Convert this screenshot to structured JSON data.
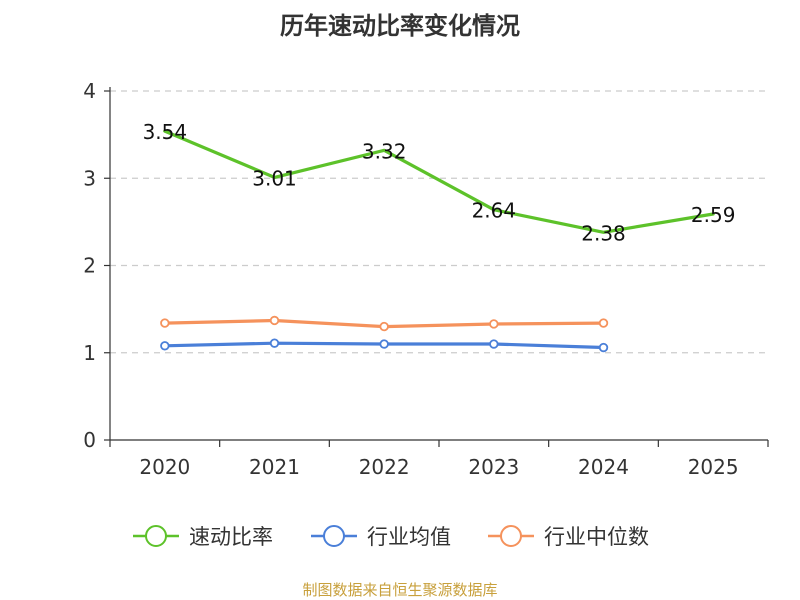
{
  "chart_data": {
    "type": "line",
    "title": "历年速动比率变化情况",
    "categories": [
      "2020",
      "2021",
      "2022",
      "2023",
      "2024",
      "2025"
    ],
    "yticks": [
      "0",
      "1",
      "2",
      "3",
      "4"
    ],
    "ylim": [
      0,
      4
    ],
    "grid": true,
    "legend_position": "bottom",
    "series": [
      {
        "name": "速动比率",
        "color": "#5dc22a",
        "values": [
          3.54,
          3.01,
          3.32,
          2.64,
          2.38,
          2.59
        ],
        "labels": [
          "3.54",
          "3.01",
          "3.32",
          "2.64",
          "2.38",
          "2.59"
        ],
        "markers": false
      },
      {
        "name": "行业均值",
        "color": "#4a7fd8",
        "values": [
          1.08,
          1.11,
          1.1,
          1.1,
          1.06,
          null
        ],
        "markers": true
      },
      {
        "name": "行业中位数",
        "color": "#f5925c",
        "values": [
          1.34,
          1.37,
          1.3,
          1.33,
          1.34,
          null
        ],
        "markers": true
      }
    ]
  },
  "source": "制图数据来自恒生聚源数据库"
}
